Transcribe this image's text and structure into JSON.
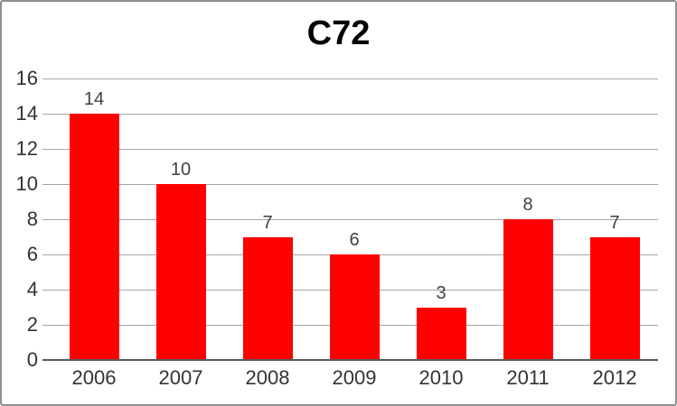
{
  "title": "C72",
  "chart_data": {
    "type": "bar",
    "title": "C72",
    "categories": [
      "2006",
      "2007",
      "2008",
      "2009",
      "2010",
      "2011",
      "2012"
    ],
    "values": [
      14,
      10,
      7,
      6,
      3,
      8,
      7
    ],
    "data_labels": [
      "14",
      "10",
      "7",
      "6",
      "3",
      "8",
      "7"
    ],
    "xlabel": "",
    "ylabel": "",
    "ylim": [
      0,
      16
    ],
    "ytick_step": 2,
    "ytick_labels": [
      "0",
      "2",
      "4",
      "6",
      "8",
      "10",
      "12",
      "14",
      "16"
    ],
    "grid": "horizontal-major",
    "legend": "none",
    "colors": {
      "bar": "#FF0000",
      "gridline": "#A6A6A6",
      "axis_line": "#595959",
      "tick_label": "#333333",
      "data_label": "#404040",
      "title": "#000000",
      "frame_border": "#8F8F8F",
      "background": "#FFFFFF"
    }
  }
}
